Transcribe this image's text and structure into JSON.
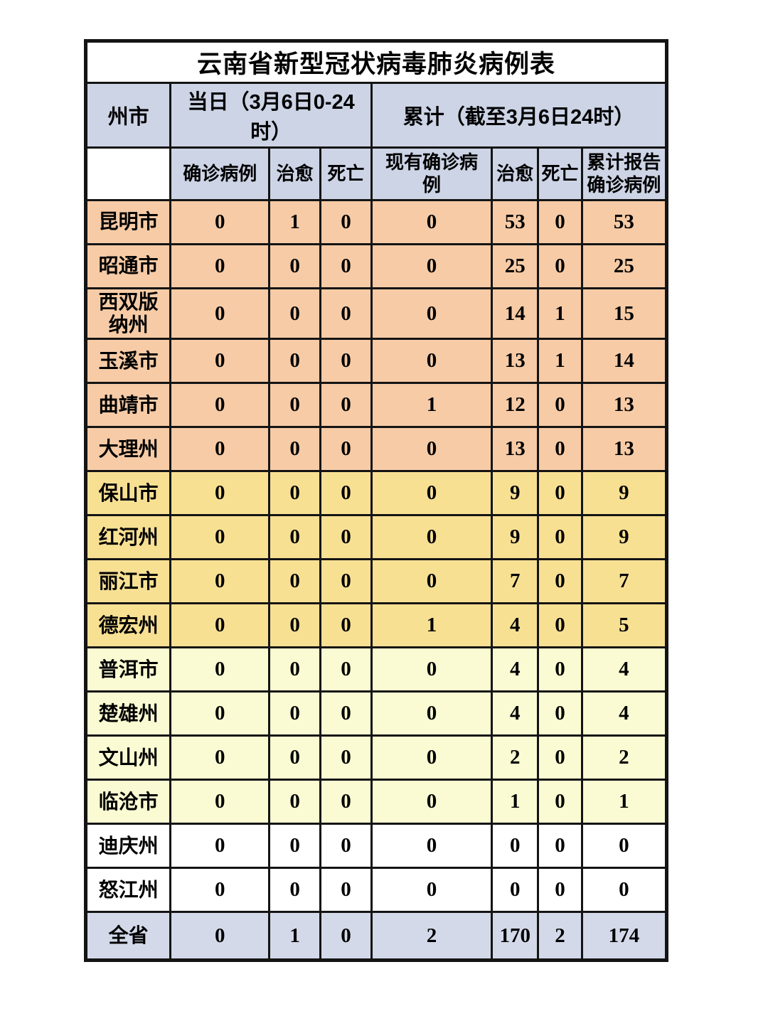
{
  "chart_data": {
    "type": "table",
    "title": "云南省新型冠状病毒肺炎病例表",
    "header": {
      "region_label": "州市",
      "daily_group_label": "当日（3月6日0-24时）",
      "cumulative_group_label": "累计（截至3月6日24时）",
      "daily_sub": [
        "确诊病例",
        "治愈",
        "死亡"
      ],
      "cumulative_sub": [
        "现有确诊病例",
        "治愈",
        "死亡",
        "累计报告确诊病例"
      ]
    },
    "rows": [
      {
        "region": "昆明市",
        "values": [
          0,
          1,
          0,
          0,
          53,
          0,
          53
        ],
        "tier": "orange"
      },
      {
        "region": "昭通市",
        "values": [
          0,
          0,
          0,
          0,
          25,
          0,
          25
        ],
        "tier": "orange"
      },
      {
        "region": "西双版纳州",
        "values": [
          0,
          0,
          0,
          0,
          14,
          1,
          15
        ],
        "tier": "orange"
      },
      {
        "region": "玉溪市",
        "values": [
          0,
          0,
          0,
          0,
          13,
          1,
          14
        ],
        "tier": "orange"
      },
      {
        "region": "曲靖市",
        "values": [
          0,
          0,
          0,
          1,
          12,
          0,
          13
        ],
        "tier": "orange"
      },
      {
        "region": "大理州",
        "values": [
          0,
          0,
          0,
          0,
          13,
          0,
          13
        ],
        "tier": "orange"
      },
      {
        "region": "保山市",
        "values": [
          0,
          0,
          0,
          0,
          9,
          0,
          9
        ],
        "tier": "gold"
      },
      {
        "region": "红河州",
        "values": [
          0,
          0,
          0,
          0,
          9,
          0,
          9
        ],
        "tier": "gold"
      },
      {
        "region": "丽江市",
        "values": [
          0,
          0,
          0,
          0,
          7,
          0,
          7
        ],
        "tier": "gold"
      },
      {
        "region": "德宏州",
        "values": [
          0,
          0,
          0,
          1,
          4,
          0,
          5
        ],
        "tier": "gold"
      },
      {
        "region": "普洱市",
        "values": [
          0,
          0,
          0,
          0,
          4,
          0,
          4
        ],
        "tier": "pale"
      },
      {
        "region": "楚雄州",
        "values": [
          0,
          0,
          0,
          0,
          4,
          0,
          4
        ],
        "tier": "pale"
      },
      {
        "region": "文山州",
        "values": [
          0,
          0,
          0,
          0,
          2,
          0,
          2
        ],
        "tier": "pale"
      },
      {
        "region": "临沧市",
        "values": [
          0,
          0,
          0,
          0,
          1,
          0,
          1
        ],
        "tier": "pale"
      },
      {
        "region": "迪庆州",
        "values": [
          0,
          0,
          0,
          0,
          0,
          0,
          0
        ],
        "tier": "white"
      },
      {
        "region": "怒江州",
        "values": [
          0,
          0,
          0,
          0,
          0,
          0,
          0
        ],
        "tier": "white"
      }
    ],
    "total": {
      "region": "全省",
      "values": [
        0,
        1,
        0,
        2,
        170,
        2,
        174
      ]
    }
  },
  "colors": {
    "header_bg": "#cdd4e6",
    "total_bg": "#d3d9e9",
    "tier_orange": "#f6cba6",
    "tier_gold": "#f8e093",
    "tier_pale": "#fafbd2",
    "tier_white": "#ffffff",
    "border": "#141414"
  }
}
